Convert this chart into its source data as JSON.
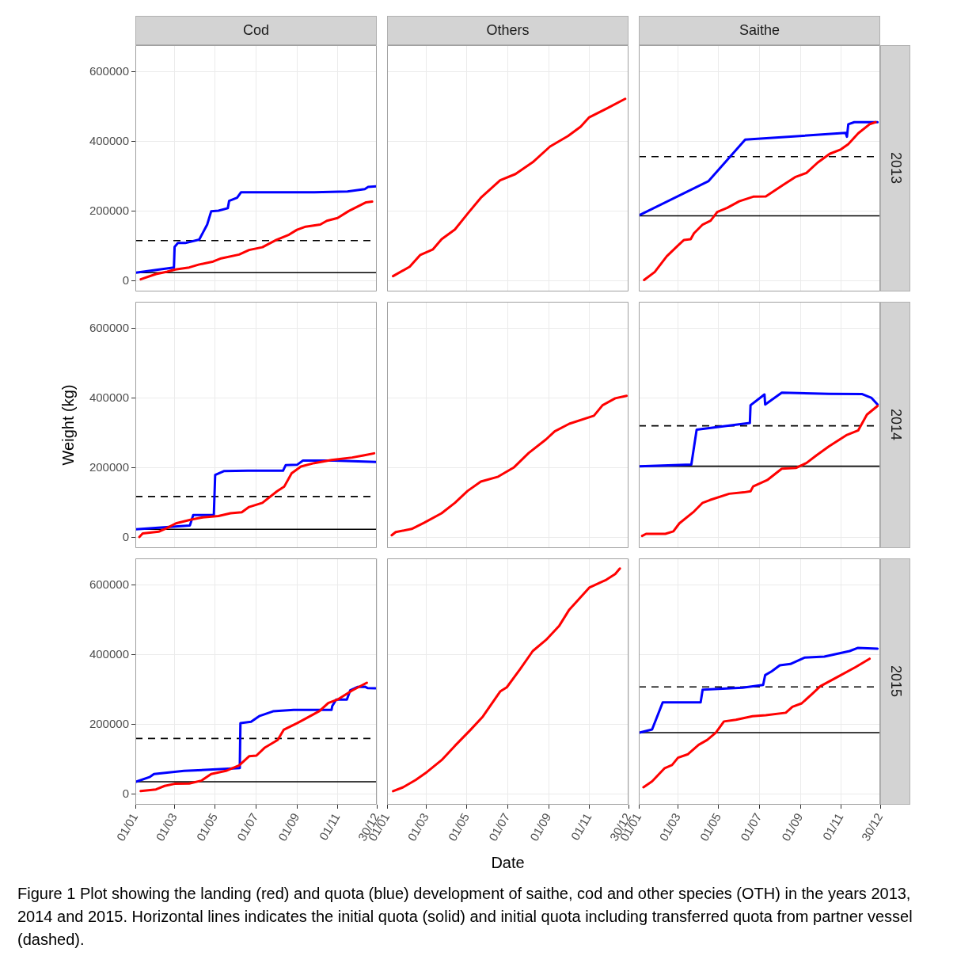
{
  "chart_data": [
    {
      "type": "line",
      "title": "Cod",
      "xlim": [
        "--01-01",
        "--12-30"
      ],
      "xticks": [
        {
          "value": "--01-01",
          "label": null
        },
        {
          "value": "--03-01",
          "label": null
        },
        {
          "value": "--05-01",
          "label": null
        },
        {
          "value": "--07-01",
          "label": null
        },
        {
          "value": "--09-01",
          "label": null
        },
        {
          "value": "--11-01",
          "label": null
        },
        {
          "value": "--12-30",
          "label": null
        }
      ],
      "ylim": [
        -30000,
        677000
      ],
      "yticks": [
        0,
        200000,
        400000,
        600000
      ],
      "grid": true,
      "tick_labels": "y",
      "ref_lines": [
        {
          "axis": "y",
          "value": 24000,
          "color": "#000000",
          "line_style": "solid"
        },
        {
          "axis": "y",
          "value": 116000,
          "color": "#000000",
          "line_style": "dashed"
        }
      ],
      "series": [
        {
          "color": "#ff0000",
          "x": [
            "--01-09",
            "--02-01",
            "--02-18",
            "--03-02",
            "--03-23",
            "--04-06",
            "--04-28",
            "--05-10",
            "--06-06",
            "--06-21",
            "--07-11",
            "--08-01",
            "--08-20",
            "--09-01",
            "--09-14",
            "--10-06",
            "--10-16",
            "--11-01",
            "--11-18",
            "--12-14",
            "--12-23"
          ],
          "values": [
            5000,
            20000,
            27000,
            33000,
            39000,
            47000,
            56000,
            65000,
            76000,
            89000,
            97000,
            118000,
            133000,
            147000,
            156000,
            162000,
            173000,
            181000,
            201000,
            226000,
            228000
          ]
        },
        {
          "color": "#0000ff",
          "x": [
            "--01-02",
            "--02-28",
            "--03-01",
            "--03-06",
            "--03-17",
            "--04-07",
            "--04-19",
            "--04-25",
            "--05-06",
            "--05-20",
            "--05-22",
            "--06-03",
            "--06-09",
            "--09-27",
            "--11-16",
            "--12-12",
            "--12-17",
            "--12-29"
          ],
          "values": [
            24000,
            39000,
            98000,
            109000,
            109000,
            119000,
            162000,
            200000,
            202000,
            209000,
            230000,
            239000,
            255000,
            255000,
            257000,
            264000,
            270000,
            272000
          ]
        }
      ]
    },
    {
      "type": "line",
      "title": "Others",
      "xlim": [
        "--01-01",
        "--12-30"
      ],
      "xticks": [
        {
          "value": "--01-01",
          "label": null
        },
        {
          "value": "--03-01",
          "label": null
        },
        {
          "value": "--05-01",
          "label": null
        },
        {
          "value": "--07-01",
          "label": null
        },
        {
          "value": "--09-01",
          "label": null
        },
        {
          "value": "--11-01",
          "label": null
        },
        {
          "value": "--12-30",
          "label": null
        }
      ],
      "ylim": [
        -30000,
        677000
      ],
      "yticks": [
        0,
        200000,
        400000,
        600000
      ],
      "grid": true,
      "tick_labels": false,
      "series": [
        {
          "color": "#ff0000",
          "x": [
            "--01-10",
            "--02-04",
            "--02-20",
            "--03-11",
            "--03-24",
            "--04-13",
            "--05-02",
            "--05-22",
            "--06-20",
            "--07-13",
            "--08-08",
            "--09-03",
            "--09-30",
            "--10-19",
            "--11-01",
            "--11-27",
            "--12-25"
          ],
          "values": [
            14000,
            41000,
            75000,
            91000,
            120000,
            148000,
            193000,
            239000,
            289000,
            307000,
            341000,
            386000,
            416000,
            443000,
            470000,
            495000,
            523000
          ]
        }
      ]
    },
    {
      "type": "line",
      "title": "Saithe",
      "y2label": "2013",
      "xlim": [
        "--01-01",
        "--12-30"
      ],
      "xticks": [
        {
          "value": "--01-01",
          "label": null
        },
        {
          "value": "--03-01",
          "label": null
        },
        {
          "value": "--05-01",
          "label": null
        },
        {
          "value": "--07-01",
          "label": null
        },
        {
          "value": "--09-01",
          "label": null
        },
        {
          "value": "--11-01",
          "label": null
        },
        {
          "value": "--12-30",
          "label": null
        }
      ],
      "ylim": [
        -30000,
        677000
      ],
      "yticks": [
        0,
        200000,
        400000,
        600000
      ],
      "grid": true,
      "tick_labels": false,
      "ref_lines": [
        {
          "axis": "y",
          "value": 187000,
          "color": "#000000",
          "line_style": "solid"
        },
        {
          "axis": "y",
          "value": 357000,
          "color": "#000000",
          "line_style": "dashed"
        }
      ],
      "series": [
        {
          "color": "#ff0000",
          "x": [
            "--01-09",
            "--01-25",
            "--02-12",
            "--03-01",
            "--03-10",
            "--03-20",
            "--03-25",
            "--04-07",
            "--04-19",
            "--04-29",
            "--05-14",
            "--06-01",
            "--06-22",
            "--07-11",
            "--08-06",
            "--08-24",
            "--09-10",
            "--09-27",
            "--10-15",
            "--11-01",
            "--11-12",
            "--11-27",
            "--12-14",
            "--12-23"
          ],
          "values": [
            3000,
            26000,
            71000,
            102000,
            118000,
            120000,
            137000,
            162000,
            173000,
            198000,
            210000,
            229000,
            242000,
            243000,
            276000,
            298000,
            310000,
            340000,
            365000,
            378000,
            393000,
            424000,
            450000,
            456000
          ]
        },
        {
          "color": "#0000ff",
          "x": [
            "--01-02",
            "--04-16",
            "--06-10",
            "--11-08",
            "--11-10",
            "--11-12",
            "--11-21",
            "--12-26"
          ],
          "values": [
            189000,
            287000,
            406000,
            425000,
            414000,
            450000,
            456000,
            456000
          ]
        }
      ]
    },
    {
      "type": "line",
      "ylabel": "Weight (kg)",
      "xlim": [
        "--01-01",
        "--12-30"
      ],
      "xticks": [
        {
          "value": "--01-01",
          "label": null
        },
        {
          "value": "--03-01",
          "label": null
        },
        {
          "value": "--05-01",
          "label": null
        },
        {
          "value": "--07-01",
          "label": null
        },
        {
          "value": "--09-01",
          "label": null
        },
        {
          "value": "--11-01",
          "label": null
        },
        {
          "value": "--12-30",
          "label": null
        }
      ],
      "ylim": [
        -30000,
        677000
      ],
      "yticks": [
        0,
        200000,
        400000,
        600000
      ],
      "grid": true,
      "tick_labels": "y",
      "ref_lines": [
        {
          "axis": "y",
          "value": 24000,
          "color": "#000000",
          "line_style": "solid"
        },
        {
          "axis": "y",
          "value": 118000,
          "color": "#000000",
          "line_style": "dashed"
        }
      ],
      "series": [
        {
          "color": "#ff0000",
          "x": [
            "--01-07",
            "--01-12",
            "--02-05",
            "--02-17",
            "--03-03",
            "--03-26",
            "--04-12",
            "--05-06",
            "--05-24",
            "--06-10",
            "--06-21",
            "--07-11",
            "--08-02",
            "--08-13",
            "--08-24",
            "--09-07",
            "--09-27",
            "--10-23",
            "--11-23",
            "--12-10",
            "--12-26"
          ],
          "values": [
            2000,
            12000,
            17000,
            27000,
            41000,
            52000,
            58000,
            62000,
            70000,
            73000,
            88000,
            100000,
            133000,
            147000,
            185000,
            204000,
            214000,
            223000,
            230000,
            236000,
            242000
          ]
        },
        {
          "color": "#0000ff",
          "x": [
            "--01-02",
            "--02-17",
            "--03-24",
            "--03-29",
            "--04-29",
            "--05-01",
            "--05-14",
            "--06-19",
            "--08-11",
            "--08-15",
            "--09-01",
            "--09-10",
            "--10-27",
            "--12-29"
          ],
          "values": [
            24000,
            30000,
            35000,
            65000,
            65000,
            180000,
            191000,
            192000,
            192000,
            208000,
            209000,
            221000,
            221000,
            217000
          ]
        }
      ]
    },
    {
      "type": "line",
      "xlim": [
        "--01-01",
        "--12-30"
      ],
      "xticks": [
        {
          "value": "--01-01",
          "label": null
        },
        {
          "value": "--03-01",
          "label": null
        },
        {
          "value": "--05-01",
          "label": null
        },
        {
          "value": "--07-01",
          "label": null
        },
        {
          "value": "--09-01",
          "label": null
        },
        {
          "value": "--11-01",
          "label": null
        },
        {
          "value": "--12-30",
          "label": null
        }
      ],
      "ylim": [
        -30000,
        677000
      ],
      "yticks": [
        0,
        200000,
        400000,
        600000
      ],
      "grid": true,
      "tick_labels": false,
      "series": [
        {
          "color": "#ff0000",
          "x": [
            "--01-08",
            "--01-14",
            "--02-07",
            "--02-26",
            "--03-24",
            "--04-13",
            "--05-02",
            "--05-22",
            "--06-17",
            "--07-11",
            "--08-02",
            "--08-28",
            "--09-10",
            "--10-02",
            "--11-08",
            "--11-21",
            "--12-10",
            "--12-27"
          ],
          "values": [
            7000,
            16000,
            25000,
            43000,
            70000,
            100000,
            134000,
            161000,
            175000,
            202000,
            243000,
            282000,
            305000,
            327000,
            350000,
            380000,
            400000,
            407000
          ]
        }
      ]
    },
    {
      "type": "line",
      "y2label": "2014",
      "xlim": [
        "--01-01",
        "--12-30"
      ],
      "xticks": [
        {
          "value": "--01-01",
          "label": null
        },
        {
          "value": "--03-01",
          "label": null
        },
        {
          "value": "--05-01",
          "label": null
        },
        {
          "value": "--07-01",
          "label": null
        },
        {
          "value": "--09-01",
          "label": null
        },
        {
          "value": "--11-01",
          "label": null
        },
        {
          "value": "--12-30",
          "label": null
        }
      ],
      "ylim": [
        -30000,
        677000
      ],
      "yticks": [
        0,
        200000,
        400000,
        600000
      ],
      "grid": true,
      "tick_labels": false,
      "ref_lines": [
        {
          "axis": "y",
          "value": 205000,
          "color": "#000000",
          "line_style": "solid"
        },
        {
          "axis": "y",
          "value": 321000,
          "color": "#000000",
          "line_style": "dashed"
        }
      ],
      "series": [
        {
          "color": "#ff0000",
          "x": [
            "--01-06",
            "--01-12",
            "--02-10",
            "--02-22",
            "--03-03",
            "--03-25",
            "--04-07",
            "--04-18",
            "--05-17",
            "--06-08",
            "--06-18",
            "--06-22",
            "--07-13",
            "--08-04",
            "--08-25",
            "--09-10",
            "--09-25",
            "--10-14",
            "--11-10",
            "--11-27",
            "--12-10",
            "--12-26"
          ],
          "values": [
            5000,
            11000,
            11000,
            18000,
            41000,
            75000,
            100000,
            108000,
            126000,
            130000,
            133000,
            147000,
            165000,
            198000,
            200000,
            214000,
            236000,
            262000,
            295000,
            308000,
            353000,
            378000
          ]
        },
        {
          "color": "#0000ff",
          "x": [
            "--01-02",
            "--03-21",
            "--03-29",
            "--06-17",
            "--06-18",
            "--07-09",
            "--07-10",
            "--08-04",
            "--10-14",
            "--12-03",
            "--12-17",
            "--12-26"
          ],
          "values": [
            205000,
            210000,
            310000,
            329000,
            380000,
            411000,
            382000,
            416000,
            413000,
            412000,
            401000,
            382000
          ]
        }
      ]
    },
    {
      "type": "line",
      "xlim": [
        "--01-01",
        "--12-30"
      ],
      "xticks": [
        {
          "value": "--01-01",
          "label": "01/01"
        },
        {
          "value": "--03-01",
          "label": "01/03"
        },
        {
          "value": "--05-01",
          "label": "01/05"
        },
        {
          "value": "--07-01",
          "label": "01/07"
        },
        {
          "value": "--09-01",
          "label": "01/09"
        },
        {
          "value": "--11-01",
          "label": "01/11"
        },
        {
          "value": "--12-30",
          "label": "30/12"
        }
      ],
      "ylim": [
        -30000,
        677000
      ],
      "yticks": [
        0,
        200000,
        400000,
        600000
      ],
      "grid": true,
      "ref_lines": [
        {
          "axis": "y",
          "value": 36000,
          "color": "#000000",
          "line_style": "solid"
        },
        {
          "axis": "y",
          "value": 160000,
          "color": "#000000",
          "line_style": "dashed"
        }
      ],
      "series": [
        {
          "color": "#ff0000",
          "x": [
            "--01-09",
            "--02-01",
            "--02-14",
            "--03-01",
            "--03-23",
            "--04-10",
            "--04-25",
            "--05-17",
            "--06-06",
            "--06-21",
            "--07-02",
            "--07-14",
            "--08-03",
            "--08-12",
            "--09-01",
            "--09-11",
            "--10-05",
            "--10-18",
            "--11-01",
            "--11-23",
            "--12-15"
          ],
          "values": [
            9000,
            14000,
            24000,
            30000,
            31000,
            39000,
            58000,
            67000,
            83000,
            109000,
            111000,
            133000,
            156000,
            185000,
            204000,
            214000,
            239000,
            262000,
            272000,
            298000,
            320000
          ]
        },
        {
          "color": "#0000ff",
          "x": [
            "--01-02",
            "--01-23",
            "--01-29",
            "--03-15",
            "--06-07",
            "--06-08",
            "--06-24",
            "--07-07",
            "--07-27",
            "--08-27",
            "--10-23",
            "--10-24",
            "--10-30",
            "--11-15",
            "--11-20",
            "--12-01",
            "--12-12",
            "--12-16",
            "--12-28"
          ],
          "values": [
            36000,
            50000,
            58000,
            67000,
            75000,
            204000,
            208000,
            225000,
            238000,
            242000,
            242000,
            253000,
            272000,
            272000,
            298000,
            308000,
            309000,
            305000,
            304000
          ]
        }
      ]
    },
    {
      "type": "line",
      "xlabel": "Date",
      "xlim": [
        "--01-01",
        "--12-30"
      ],
      "xticks": [
        {
          "value": "--01-01",
          "label": "01/01"
        },
        {
          "value": "--03-01",
          "label": "01/03"
        },
        {
          "value": "--05-01",
          "label": "01/05"
        },
        {
          "value": "--07-01",
          "label": "01/07"
        },
        {
          "value": "--09-01",
          "label": "01/09"
        },
        {
          "value": "--11-01",
          "label": "01/11"
        },
        {
          "value": "--12-30",
          "label": "30/12"
        }
      ],
      "ylim": [
        -30000,
        677000
      ],
      "yticks": [
        0,
        200000,
        400000,
        600000
      ],
      "grid": true,
      "tick_labels": "x",
      "annotations": [
        "Figure 1 Plot showing the landing (red) and quota (blue) development of saithe, cod and other species (OTH) in the years 2013, 2014 and 2015. Horizontal lines indicates the initial quota (solid) and initial quota including transferred quota from partner vessel (dashed)."
      ],
      "series": [
        {
          "color": "#ff0000",
          "x": [
            "--01-10",
            "--01-25",
            "--02-13",
            "--03-02",
            "--03-24",
            "--04-13",
            "--05-06",
            "--05-25",
            "--06-20",
            "--06-30",
            "--07-20",
            "--08-08",
            "--08-28",
            "--09-17",
            "--10-02",
            "--10-15",
            "--11-01",
            "--11-27",
            "--12-10",
            "--12-17"
          ],
          "values": [
            9000,
            20000,
            41000,
            64000,
            98000,
            139000,
            184000,
            223000,
            295000,
            307000,
            359000,
            411000,
            443000,
            484000,
            530000,
            557000,
            593000,
            616000,
            632000,
            648000
          ]
        }
      ]
    },
    {
      "type": "line",
      "y2label": "2015",
      "xlim": [
        "--01-01",
        "--12-30"
      ],
      "xticks": [
        {
          "value": "--01-01",
          "label": "01/01"
        },
        {
          "value": "--03-01",
          "label": "01/03"
        },
        {
          "value": "--05-01",
          "label": "01/05"
        },
        {
          "value": "--07-01",
          "label": "01/07"
        },
        {
          "value": "--09-01",
          "label": "01/09"
        },
        {
          "value": "--11-01",
          "label": "01/11"
        },
        {
          "value": "--12-30",
          "label": "30/12"
        }
      ],
      "ylim": [
        -30000,
        677000
      ],
      "yticks": [
        0,
        200000,
        400000,
        600000
      ],
      "grid": true,
      "tick_labels": "x",
      "ref_lines": [
        {
          "axis": "y",
          "value": 177000,
          "color": "#000000",
          "line_style": "solid"
        },
        {
          "axis": "y",
          "value": 308000,
          "color": "#000000",
          "line_style": "dashed"
        }
      ],
      "series": [
        {
          "color": "#ff0000",
          "x": [
            "--01-08",
            "--01-21",
            "--02-09",
            "--02-20",
            "--03-01",
            "--03-16",
            "--04-01",
            "--04-14",
            "--04-27",
            "--05-09",
            "--05-27",
            "--06-21",
            "--07-11",
            "--08-10",
            "--08-20",
            "--09-03",
            "--09-18",
            "--10-01",
            "--10-28",
            "--11-23",
            "--12-14"
          ],
          "values": [
            20000,
            37000,
            75000,
            84000,
            105000,
            115000,
            142000,
            156000,
            177000,
            209000,
            214000,
            224000,
            227000,
            234000,
            251000,
            261000,
            287000,
            310000,
            338000,
            365000,
            389000
          ]
        },
        {
          "color": "#0000ff",
          "x": [
            "--01-02",
            "--01-21",
            "--02-06",
            "--04-04",
            "--04-07",
            "--06-06",
            "--07-07",
            "--07-10",
            "--07-20",
            "--08-01",
            "--08-17",
            "--09-07",
            "--10-07",
            "--11-14",
            "--11-26",
            "--12-26"
          ],
          "values": [
            177000,
            186000,
            264000,
            264000,
            300000,
            306000,
            314000,
            342000,
            353000,
            370000,
            374000,
            392000,
            395000,
            411000,
            420000,
            418000
          ]
        }
      ]
    }
  ]
}
